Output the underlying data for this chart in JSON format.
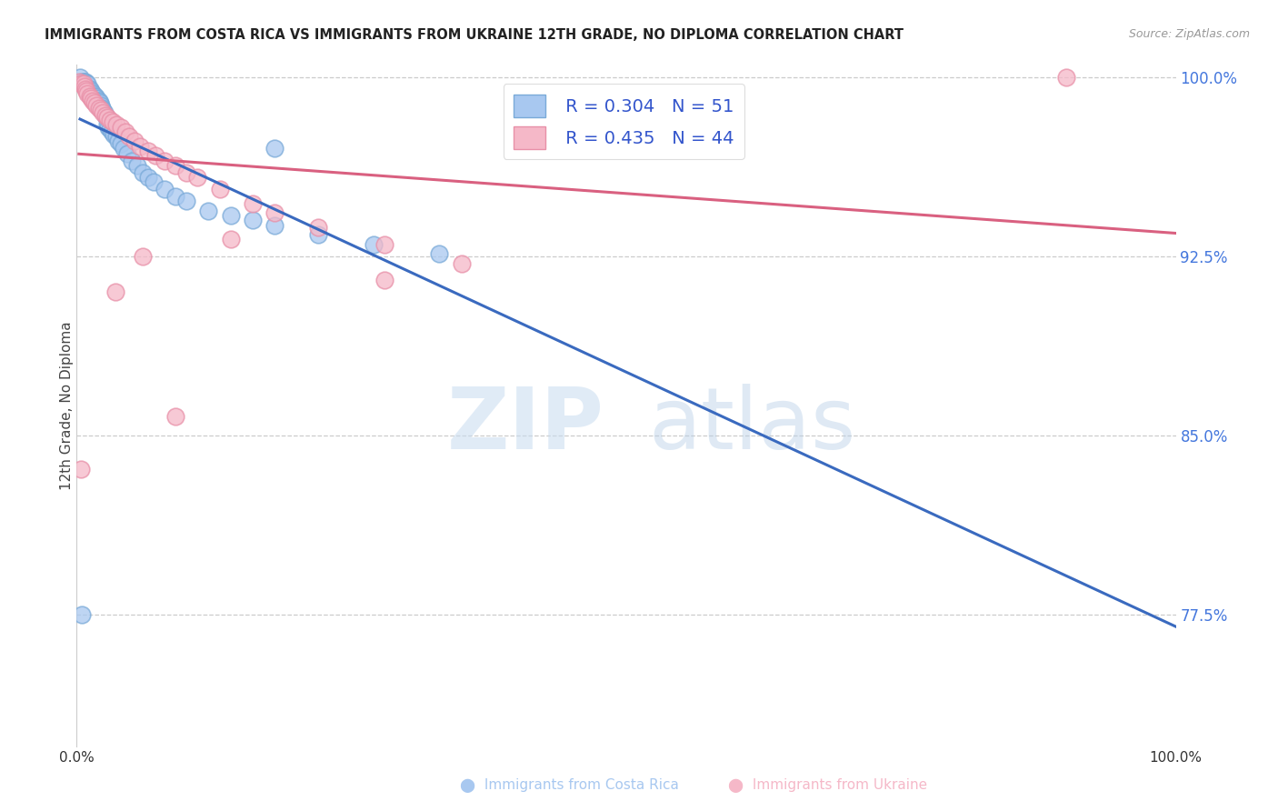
{
  "title": "IMMIGRANTS FROM COSTA RICA VS IMMIGRANTS FROM UKRAINE 12TH GRADE, NO DIPLOMA CORRELATION CHART",
  "source": "Source: ZipAtlas.com",
  "ylabel": "12th Grade, No Diploma",
  "xmin": 0.0,
  "xmax": 1.0,
  "ymin": 0.72,
  "ymax": 1.005,
  "ytick_positions": [
    0.775,
    0.85,
    0.925,
    1.0
  ],
  "ytick_labels": [
    "77.5%",
    "85.0%",
    "92.5%",
    "100.0%"
  ],
  "xtick_positions": [
    0.0,
    0.1,
    0.2,
    0.3,
    0.4,
    0.5,
    0.6,
    0.7,
    0.8,
    0.9,
    1.0
  ],
  "xtick_labels": [
    "0.0%",
    "",
    "",
    "",
    "",
    "",
    "",
    "",
    "",
    "",
    "100.0%"
  ],
  "grid_color": "#cccccc",
  "background_color": "#ffffff",
  "watermark_zip": "ZIP",
  "watermark_atlas": "atlas",
  "legend_R_costa_rica": "R = 0.304",
  "legend_N_costa_rica": "N = 51",
  "legend_R_ukraine": "R = 0.435",
  "legend_N_ukraine": "N = 44",
  "costa_rica_color": "#a8c8f0",
  "costa_rica_edge": "#7aaad8",
  "ukraine_color": "#f5b8c8",
  "ukraine_edge": "#e890a8",
  "costa_rica_line_color": "#3a6abf",
  "ukraine_line_color": "#d96080",
  "costa_rica_x": [
    0.003,
    0.005,
    0.006,
    0.007,
    0.008,
    0.009,
    0.01,
    0.011,
    0.012,
    0.013,
    0.014,
    0.015,
    0.016,
    0.017,
    0.018,
    0.019,
    0.02,
    0.021,
    0.022,
    0.023,
    0.024,
    0.025,
    0.026,
    0.027,
    0.028,
    0.029,
    0.03,
    0.032,
    0.034,
    0.036,
    0.038,
    0.04,
    0.043,
    0.046,
    0.05,
    0.055,
    0.06,
    0.065,
    0.07,
    0.08,
    0.09,
    0.1,
    0.12,
    0.14,
    0.16,
    0.18,
    0.22,
    0.27,
    0.33,
    0.005,
    0.18
  ],
  "costa_rica_y": [
    1.0,
    0.998,
    0.998,
    0.998,
    0.998,
    0.997,
    0.997,
    0.995,
    0.995,
    0.994,
    0.993,
    0.993,
    0.992,
    0.992,
    0.991,
    0.99,
    0.99,
    0.989,
    0.988,
    0.987,
    0.986,
    0.985,
    0.984,
    0.983,
    0.98,
    0.979,
    0.978,
    0.977,
    0.976,
    0.975,
    0.973,
    0.972,
    0.97,
    0.968,
    0.965,
    0.963,
    0.96,
    0.958,
    0.956,
    0.953,
    0.95,
    0.948,
    0.944,
    0.942,
    0.94,
    0.938,
    0.934,
    0.93,
    0.926,
    0.775,
    0.97
  ],
  "ukraine_x": [
    0.002,
    0.004,
    0.006,
    0.007,
    0.008,
    0.009,
    0.01,
    0.012,
    0.013,
    0.015,
    0.016,
    0.018,
    0.02,
    0.022,
    0.024,
    0.026,
    0.028,
    0.03,
    0.033,
    0.036,
    0.04,
    0.044,
    0.048,
    0.053,
    0.058,
    0.065,
    0.072,
    0.08,
    0.09,
    0.1,
    0.11,
    0.13,
    0.16,
    0.18,
    0.22,
    0.28,
    0.35,
    0.28,
    0.14,
    0.06,
    0.035,
    0.09,
    0.9,
    0.004
  ],
  "ukraine_y": [
    0.998,
    0.997,
    0.997,
    0.996,
    0.995,
    0.994,
    0.993,
    0.992,
    0.991,
    0.99,
    0.989,
    0.988,
    0.987,
    0.986,
    0.985,
    0.984,
    0.983,
    0.982,
    0.981,
    0.98,
    0.979,
    0.977,
    0.975,
    0.973,
    0.971,
    0.969,
    0.967,
    0.965,
    0.963,
    0.96,
    0.958,
    0.953,
    0.947,
    0.943,
    0.937,
    0.93,
    0.922,
    0.915,
    0.932,
    0.925,
    0.91,
    0.858,
    1.0,
    0.836
  ]
}
